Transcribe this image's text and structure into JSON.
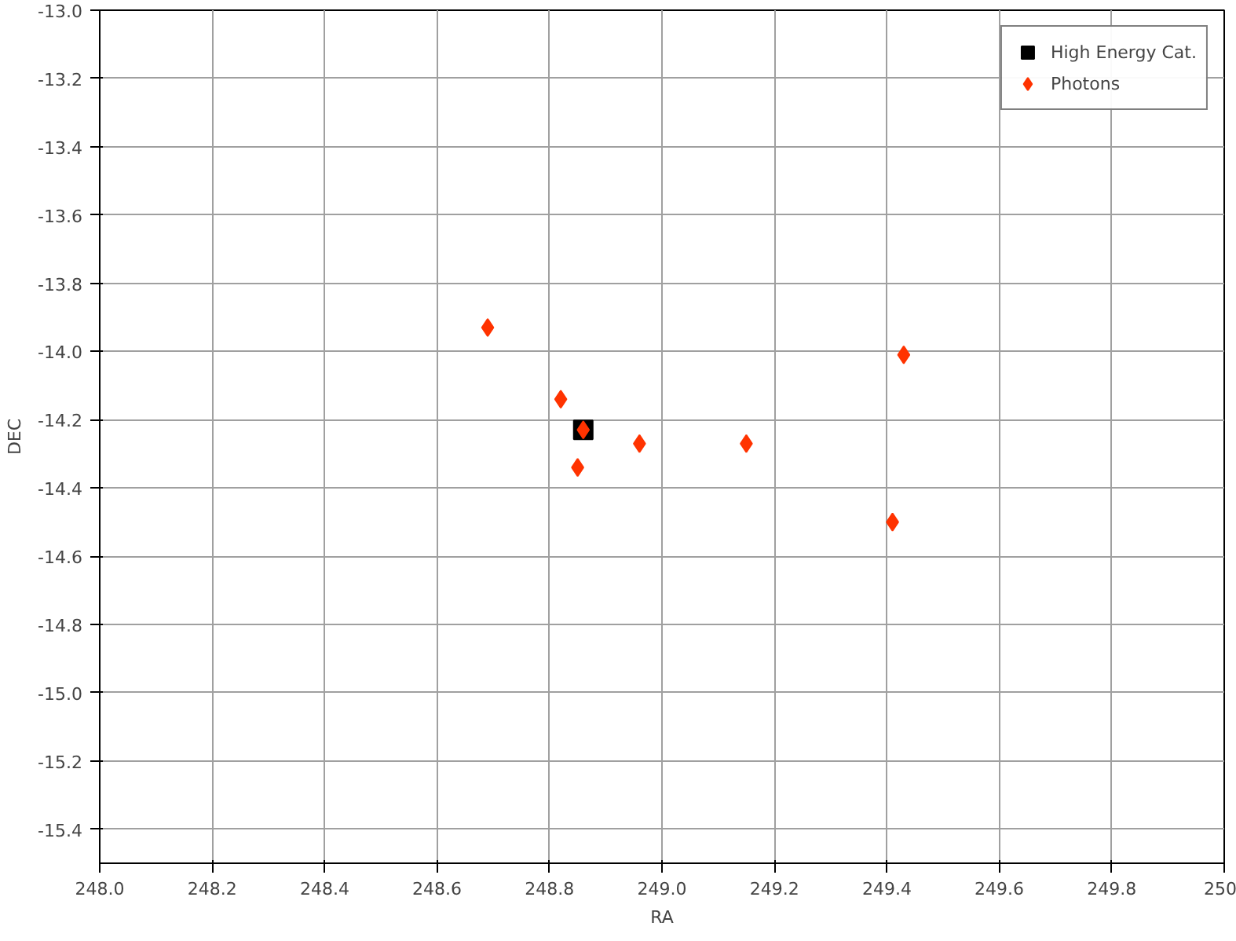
{
  "chart_data": {
    "type": "scatter",
    "xlabel": "RA",
    "ylabel": "DEC",
    "xlim": [
      248.0,
      250.0
    ],
    "ylim": [
      -15.5,
      -13.0
    ],
    "xticks": [
      {
        "value": 248.0,
        "label": "248.0"
      },
      {
        "value": 248.2,
        "label": "248.2"
      },
      {
        "value": 248.4,
        "label": "248.4"
      },
      {
        "value": 248.6,
        "label": "248.6"
      },
      {
        "value": 248.8,
        "label": "248.8"
      },
      {
        "value": 249.0,
        "label": "249.0"
      },
      {
        "value": 249.2,
        "label": "249.2"
      },
      {
        "value": 249.4,
        "label": "249.4"
      },
      {
        "value": 249.6,
        "label": "249.6"
      },
      {
        "value": 249.8,
        "label": "249.8"
      },
      {
        "value": 250.0,
        "label": "250"
      }
    ],
    "yticks": [
      {
        "value": -13.0,
        "label": "-13.0"
      },
      {
        "value": -13.2,
        "label": "-13.2"
      },
      {
        "value": -13.4,
        "label": "-13.4"
      },
      {
        "value": -13.6,
        "label": "-13.6"
      },
      {
        "value": -13.8,
        "label": "-13.8"
      },
      {
        "value": -14.0,
        "label": "-14.0"
      },
      {
        "value": -14.2,
        "label": "-14.2"
      },
      {
        "value": -14.4,
        "label": "-14.4"
      },
      {
        "value": -14.6,
        "label": "-14.6"
      },
      {
        "value": -14.8,
        "label": "-14.8"
      },
      {
        "value": -15.0,
        "label": "-15.0"
      },
      {
        "value": -15.2,
        "label": "-15.2"
      },
      {
        "value": -15.4,
        "label": "-15.4"
      }
    ],
    "grid": true,
    "legend": "top right",
    "series": [
      {
        "name": "High Energy Cat.",
        "color": "#000000",
        "marker": "square",
        "x": [
          248.86
        ],
        "values": [
          -14.23
        ]
      },
      {
        "name": "Photons",
        "color": "#ff3300",
        "marker": "diamond",
        "x": [
          248.69,
          248.82,
          248.86,
          248.85,
          248.96,
          249.15,
          249.43,
          249.41
        ],
        "values": [
          -13.93,
          -14.14,
          -14.23,
          -14.34,
          -14.27,
          -14.27,
          -14.01,
          -14.5
        ]
      }
    ]
  }
}
